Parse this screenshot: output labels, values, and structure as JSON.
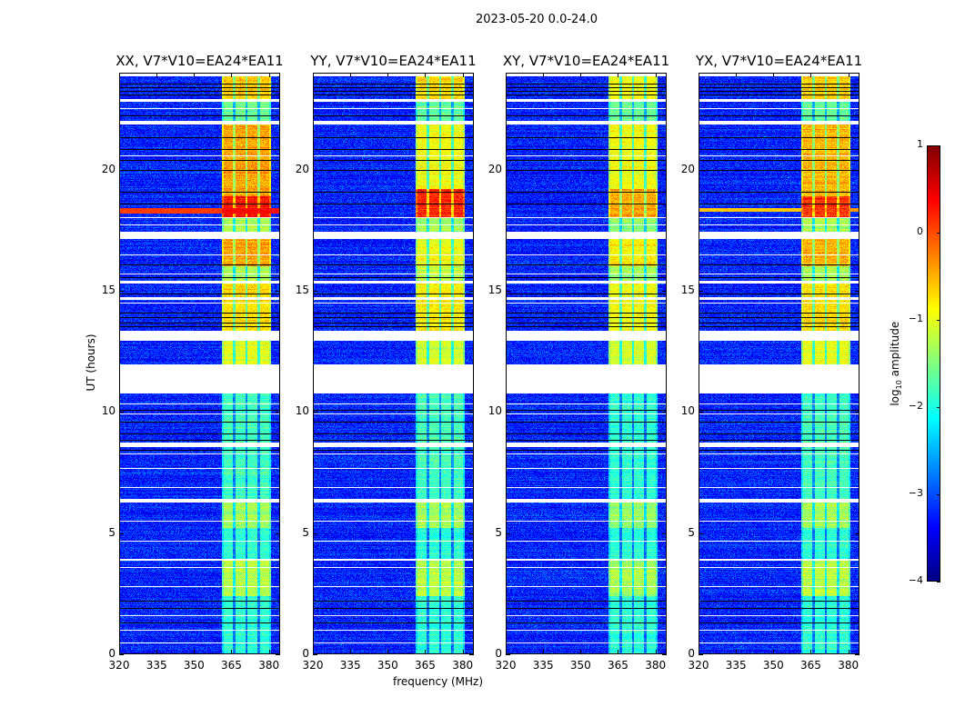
{
  "chart_data": {
    "type": "heatmap",
    "title": "2023-05-20 0.0-24.0",
    "xlabel": "frequency (MHz)",
    "ylabel": "UT (hours)",
    "xlim": [
      320,
      384.5
    ],
    "ylim": [
      0,
      24
    ],
    "xticks": [
      "320",
      "335",
      "350",
      "365",
      "380"
    ],
    "xtick_values": [
      320,
      335,
      350,
      365,
      380
    ],
    "yticks": [
      "0",
      "5",
      "10",
      "15",
      "20"
    ],
    "ytick_values": [
      0,
      5,
      10,
      15,
      20
    ],
    "colorbar": {
      "label_main": "log",
      "label_sub": "10",
      "label_rest": " amplitude",
      "range": [
        -4,
        1
      ],
      "ticks": [
        "−4",
        "−3",
        "−2",
        "−1",
        "0",
        "1"
      ],
      "tick_values": [
        -4,
        -3,
        -2,
        -1,
        0,
        1
      ],
      "colormap": "jet"
    },
    "background_level": -3.2,
    "band_mhz": [
      361,
      381
    ],
    "subband_dividers_mhz": [
      366,
      371,
      376
    ],
    "flagged_gaps_hours": [
      [
        10.75,
        11.95
      ],
      [
        12.95,
        13.35
      ],
      [
        17.15,
        17.45
      ],
      [
        21.85,
        22.0
      ],
      [
        22.8,
        22.9
      ],
      [
        15.3,
        15.42
      ],
      [
        14.62,
        14.75
      ],
      [
        8.55,
        8.72
      ],
      [
        6.25,
        6.42
      ],
      [
        3.85,
        3.95
      ],
      [
        23.85,
        24.0
      ]
    ],
    "white_lines_hours": [
      22.55,
      20.6,
      18.05,
      17.75,
      16.5,
      15.7,
      14.5,
      10.35,
      9.95,
      8.3,
      7.7,
      6.9,
      5.5,
      4.7,
      3.6,
      2.8,
      1.6,
      1.0,
      0.5
    ],
    "dark_lines_hours": [
      23.55,
      23.4,
      23.25,
      23.1,
      22.25,
      21.35,
      20.85,
      20.4,
      20.0,
      19.1,
      18.6,
      16.1,
      15.55,
      14.9,
      14.1,
      13.9,
      13.7,
      13.55,
      10.1,
      9.6,
      9.1,
      8.85,
      8.45,
      2.2,
      1.9,
      1.3
    ],
    "panels": [
      {
        "title": "XX, V7*V10=EA24*EA11",
        "band_levels": [
          [
            0,
            2.4,
            -1.9
          ],
          [
            2.4,
            3.85,
            -1.2
          ],
          [
            3.95,
            5.2,
            -1.9
          ],
          [
            5.2,
            6.25,
            -1.3
          ],
          [
            6.42,
            10.75,
            -1.8
          ],
          [
            11.95,
            12.95,
            -1.0
          ],
          [
            13.35,
            15.3,
            -0.7
          ],
          [
            15.42,
            16.0,
            -1.3
          ],
          [
            16.0,
            17.15,
            -0.4
          ],
          [
            17.45,
            18.0,
            -1.3
          ],
          [
            18.0,
            18.9,
            0.3
          ],
          [
            18.9,
            21.85,
            -0.4
          ],
          [
            22.0,
            22.8,
            -1.6
          ],
          [
            22.9,
            23.85,
            -0.6
          ]
        ],
        "rfi_line": [
          18.2,
          18.4,
          0.3
        ]
      },
      {
        "title": "YY, V7*V10=EA24*EA11",
        "band_levels": [
          [
            0,
            2.4,
            -1.9
          ],
          [
            2.4,
            3.85,
            -1.2
          ],
          [
            3.95,
            5.2,
            -1.9
          ],
          [
            5.2,
            6.25,
            -1.3
          ],
          [
            6.42,
            10.75,
            -1.8
          ],
          [
            11.95,
            12.95,
            -1.1
          ],
          [
            13.35,
            15.3,
            -0.8
          ],
          [
            15.42,
            16.0,
            -1.2
          ],
          [
            16.0,
            17.15,
            -0.9
          ],
          [
            17.45,
            18.0,
            -1.3
          ],
          [
            18.0,
            19.2,
            0.2
          ],
          [
            19.2,
            21.85,
            -0.9
          ],
          [
            22.0,
            22.8,
            -1.6
          ],
          [
            22.9,
            23.85,
            -0.7
          ]
        ],
        "rfi_line": null
      },
      {
        "title": "XY, V7*V10=EA24*EA11",
        "band_levels": [
          [
            0,
            2.4,
            -1.9
          ],
          [
            2.4,
            3.85,
            -1.3
          ],
          [
            3.95,
            5.2,
            -1.9
          ],
          [
            5.2,
            6.25,
            -1.4
          ],
          [
            6.42,
            10.75,
            -1.9
          ],
          [
            11.95,
            12.95,
            -1.1
          ],
          [
            13.35,
            15.3,
            -0.9
          ],
          [
            15.42,
            16.0,
            -1.3
          ],
          [
            16.0,
            17.15,
            -0.8
          ],
          [
            17.45,
            18.0,
            -1.4
          ],
          [
            18.0,
            19.2,
            -0.4
          ],
          [
            19.2,
            21.85,
            -0.9
          ],
          [
            22.0,
            22.8,
            -1.6
          ],
          [
            22.9,
            23.85,
            -0.9
          ]
        ],
        "rfi_line": null
      },
      {
        "title": "YX, V7*V10=EA24*EA11",
        "band_levels": [
          [
            0,
            2.4,
            -1.9
          ],
          [
            2.4,
            3.85,
            -1.2
          ],
          [
            3.95,
            5.2,
            -1.9
          ],
          [
            5.2,
            6.25,
            -1.3
          ],
          [
            6.42,
            10.75,
            -1.8
          ],
          [
            11.95,
            12.95,
            -1.0
          ],
          [
            13.35,
            15.3,
            -0.7
          ],
          [
            15.42,
            16.0,
            -1.3
          ],
          [
            16.0,
            17.15,
            -0.5
          ],
          [
            17.45,
            18.0,
            -1.3
          ],
          [
            18.0,
            18.9,
            0.1
          ],
          [
            18.9,
            21.85,
            -0.5
          ],
          [
            22.0,
            22.8,
            -1.6
          ],
          [
            22.9,
            23.85,
            -0.6
          ]
        ],
        "rfi_line": [
          18.25,
          18.4,
          -0.4
        ]
      }
    ]
  }
}
